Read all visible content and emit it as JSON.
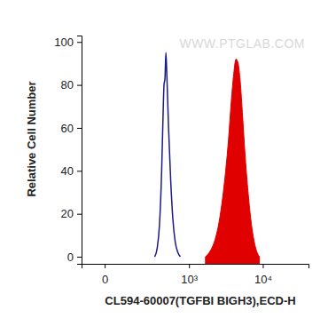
{
  "chart_data": {
    "type": "line",
    "x_label": "CL594-60007(TGFBI BIGH3),ECD-H",
    "y_label": "Relative Cell Number",
    "annotations": [
      "WWW.PTGLAB.COM"
    ],
    "log": "x",
    "xlim": [
      -86,
      40000
    ],
    "xticks": [
      0,
      {
        "value": 1000,
        "label": "10³"
      },
      {
        "value": 10000,
        "label": "10⁴"
      }
    ],
    "ylim": [
      -3.3,
      103
    ],
    "yticks": [
      0,
      20,
      40,
      60,
      80,
      100
    ],
    "series": [
      {
        "type": "line",
        "color": "#1a1a8c",
        "x": [
          300,
          330,
          360,
          390,
          410,
          425,
          440,
          455,
          470,
          500,
          540,
          580,
          630,
          690,
          750
        ],
        "values": [
          0,
          4,
          15,
          40,
          65,
          80,
          83,
          95,
          85,
          60,
          35,
          18,
          7,
          2,
          0
        ]
      },
      {
        "type": "area",
        "color": "#e00000",
        "x": [
          1700,
          2000,
          2300,
          2600,
          2900,
          3200,
          3500,
          3800,
          4100,
          4400,
          4700,
          5000,
          5400,
          5800,
          6300,
          6900,
          7500,
          8200,
          9000
        ],
        "values": [
          0,
          3,
          8,
          16,
          27,
          40,
          55,
          72,
          85,
          92,
          90,
          82,
          65,
          48,
          32,
          18,
          9,
          3,
          0
        ]
      }
    ]
  }
}
